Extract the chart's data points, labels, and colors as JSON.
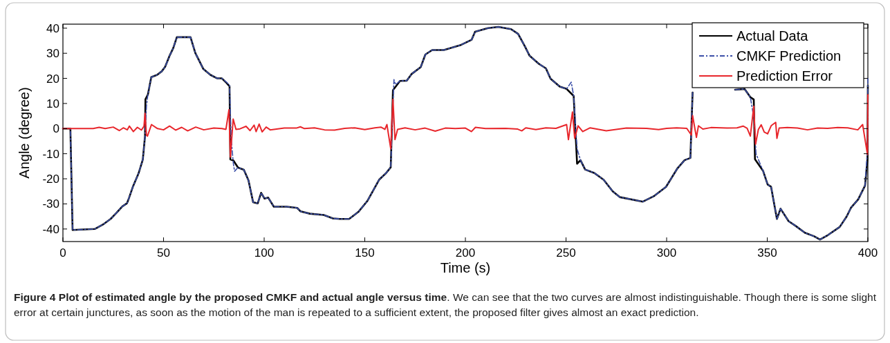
{
  "chart_data": {
    "type": "line",
    "title": "Figure 4 Plot of estimated angle by the proposed CMKF and actual angle versus time",
    "xlabel": "Time (s)",
    "ylabel": "Angle (degree)",
    "annotations": [
      ". We can see that the two curves are almost indistinguishable. Though there is some slight error at certain junctures, as soon as the motion of the man is repeated to a sufficient extent, the proposed filter gives almost an exact prediction."
    ],
    "xlim": [
      0,
      400
    ],
    "xticks": [
      0,
      50,
      100,
      150,
      200,
      250,
      300,
      350,
      400
    ],
    "ylim": [
      -45,
      41.6
    ],
    "yticks": [
      -40,
      -30,
      -20,
      -10,
      0,
      10,
      20,
      30,
      40
    ],
    "grid": false,
    "legend": "top right",
    "series": [
      {
        "name": "Actual Data",
        "color": "#000000",
        "line_style": "solid",
        "x": [
          0,
          3.7,
          4.8,
          15.8,
          20.3,
          23.7,
          26.7,
          29.5,
          31.8,
          32.9,
          34.7,
          37.6,
          39.7,
          40.8,
          41,
          42.2,
          43.9,
          46.8,
          49.1,
          50.8,
          53.1,
          54.8,
          56.6,
          63.4,
          65.8,
          69.8,
          73.3,
          76.7,
          79,
          81.3,
          82.8,
          83.2,
          84.7,
          87,
          89.9,
          92.2,
          94.5,
          96.8,
          98.5,
          100.2,
          102,
          104.8,
          111.2,
          116.4,
          118.1,
          122.7,
          129.6,
          134.2,
          137.6,
          142.2,
          146.8,
          151.4,
          157.1,
          160.6,
          162.9,
          164,
          167.5,
          170.9,
          173.2,
          177.8,
          180.1,
          183.5,
          189.3,
          197.4,
          203.1,
          204.8,
          211.2,
          216.4,
          222.7,
          226.2,
          229.6,
          231.9,
          236.5,
          240,
          242.3,
          246.9,
          250.3,
          253.8,
          255.5,
          257.2,
          259.5,
          264.1,
          268.7,
          273.2,
          276.7,
          288.2,
          293.9,
          299.7,
          305.4,
          308.9,
          311.8,
          312.9,
          325,
          334,
          338.7,
          341.6,
          343.3,
          343.9,
          347.9,
          350.2,
          351.9,
          354.8,
          356.6,
          360.6,
          364,
          368.7,
          373.3,
          376.2,
          380.2,
          386,
          389.4,
          391.7,
          395.2,
          398.6,
          399.8,
          400
        ],
        "values": [
          0,
          0,
          -40.4,
          -40,
          -38,
          -36,
          -33.5,
          -31,
          -29.8,
          -27.5,
          -23.3,
          -17.8,
          -12.3,
          -3,
          11.7,
          13.5,
          20.5,
          21.4,
          22.8,
          24.6,
          29.2,
          32,
          36.4,
          36.4,
          30.1,
          23.7,
          21.4,
          20,
          20,
          18.2,
          16.8,
          -12.3,
          -12.7,
          -15.5,
          -16.4,
          -20.6,
          -29.3,
          -29.8,
          -25.6,
          -27.9,
          -27.5,
          -31.1,
          -31.1,
          -31.6,
          -33,
          -33.9,
          -34.4,
          -35.8,
          -36,
          -36,
          -33.2,
          -28.7,
          -20.4,
          -17.7,
          -15.4,
          15.3,
          19,
          19.1,
          21.7,
          24.5,
          29.5,
          31.3,
          31.3,
          33.2,
          35.4,
          38.6,
          40,
          40.5,
          39.6,
          37.7,
          32.7,
          29,
          25.8,
          24,
          19.9,
          16.7,
          15.8,
          13,
          -14,
          -12.6,
          -16.3,
          -17.7,
          -20.4,
          -25,
          -27.3,
          -29.1,
          -26.8,
          -23.2,
          -15.8,
          -12.6,
          -11.7,
          14.4,
          null,
          15.5,
          15.8,
          12.5,
          11.6,
          -12.2,
          -16.8,
          -22.3,
          -23.2,
          -36,
          -31.9,
          -36.9,
          -38.7,
          -41.5,
          -42.9,
          -44.2,
          -42.4,
          -39.2,
          -35.1,
          -31.4,
          -28.2,
          -22.7,
          -12.2,
          17.1
        ]
      },
      {
        "name": "CMKF Prediction",
        "color": "#3b4fa8",
        "line_style": "dashdot",
        "x": [
          0,
          3.7,
          4.8,
          15.8,
          20.3,
          23.7,
          26.7,
          29.5,
          31.8,
          32.9,
          34.7,
          37.6,
          39.7,
          40.8,
          41.5,
          42.2,
          43.9,
          46.8,
          49.1,
          50.8,
          53.1,
          54.8,
          56.6,
          63.4,
          65.8,
          69.8,
          73.3,
          76.7,
          79,
          81.3,
          82.8,
          83.6,
          84.7,
          85.3,
          87,
          89.9,
          92.2,
          94.5,
          96.8,
          98.5,
          100.2,
          102,
          104.8,
          111.2,
          116.4,
          118.1,
          122.7,
          129.6,
          134.2,
          137.6,
          142.2,
          146.8,
          151.4,
          157.1,
          160.6,
          162.9,
          163.8,
          164.5,
          165.3,
          167.5,
          170.9,
          173.2,
          177.8,
          180.1,
          183.5,
          189.3,
          197.4,
          203.1,
          204.8,
          211.2,
          216.4,
          222.7,
          226.2,
          229.6,
          231.9,
          236.5,
          240,
          242.3,
          246.9,
          250.3,
          252.6,
          253.8,
          255.5,
          257.2,
          259.5,
          264.1,
          268.7,
          273.2,
          276.7,
          288.2,
          293.9,
          299.7,
          305.4,
          308.9,
          311.8,
          312.9,
          325,
          334,
          338.7,
          341.6,
          343.6,
          344.4,
          347.9,
          350.2,
          351.9,
          354.8,
          356.6,
          360.6,
          364,
          368.7,
          373.3,
          376.2,
          380.2,
          386,
          389.4,
          391.7,
          395.2,
          398.6,
          399.8,
          400
        ],
        "values": [
          0,
          0,
          -40.4,
          -40,
          -38,
          -36,
          -33.5,
          -31,
          -29.8,
          -27.5,
          -23.3,
          -17.8,
          -12.3,
          -3,
          9,
          13.5,
          20.5,
          21.4,
          22.8,
          24.6,
          29.2,
          32,
          36.4,
          36.4,
          30.1,
          23.7,
          21.4,
          20,
          20,
          18.5,
          17.2,
          -4,
          -14,
          -17,
          -15.5,
          -16.4,
          -20.6,
          -29.3,
          -29.8,
          -25.6,
          -27.9,
          -27.5,
          -31.1,
          -31.1,
          -31.6,
          -33,
          -33.9,
          -34.4,
          -35.8,
          -36,
          -36,
          -33.2,
          -28.7,
          -20.4,
          -17.7,
          -15.4,
          5,
          19.5,
          17.5,
          19,
          19.1,
          21.7,
          24.5,
          29.5,
          31.3,
          31.3,
          33.2,
          35.4,
          38.6,
          40,
          40.5,
          39.6,
          37.7,
          32.7,
          29,
          25.8,
          24,
          19.9,
          16.7,
          15.8,
          18.5,
          13,
          -8,
          -12.6,
          -16.3,
          -17.7,
          -20.4,
          -25,
          -27.3,
          -29.1,
          -26.8,
          -23.2,
          -15.8,
          -12.6,
          -11.7,
          14.4,
          null,
          15.5,
          15.8,
          12.5,
          3,
          -10,
          -16.8,
          -22.3,
          -23.2,
          -36,
          -31.9,
          -36.9,
          -38.7,
          -41.5,
          -42.9,
          -44.2,
          -42.4,
          -39.2,
          -35.1,
          -31.4,
          -28.2,
          -22.7,
          -8,
          20
        ]
      },
      {
        "name": "Prediction Error",
        "color": "#e8262b",
        "line_style": "solid",
        "x": [
          0,
          4,
          15,
          18,
          21,
          25,
          28,
          30,
          32,
          33,
          35,
          37,
          39,
          40.3,
          40.8,
          41.5,
          42,
          44,
          47,
          50,
          53,
          56,
          59,
          62,
          66,
          70,
          75,
          79,
          81,
          82.5,
          83.2,
          84.6,
          86,
          88,
          91,
          93,
          95,
          96,
          97.5,
          99,
          101,
          103,
          110,
          116,
          118,
          120,
          125,
          130,
          135,
          140,
          145,
          150,
          155,
          158,
          160,
          161,
          162.9,
          164,
          165,
          166.3,
          170,
          175,
          180,
          185,
          190,
          195,
          200,
          203,
          205,
          210,
          220,
          226,
          228,
          230,
          235,
          240,
          245,
          250.3,
          251.2,
          253.2,
          254.3,
          256,
          258.3,
          262,
          270,
          280,
          290,
          296,
          300,
          305,
          310,
          312.3,
          312.9,
          314.8,
          315.8,
          318,
          322,
          330,
          335,
          338,
          340,
          341.6,
          343.3,
          344.2,
          345.6,
          347,
          348.5,
          350.2,
          352,
          354.2,
          354.8,
          355.9,
          360,
          365,
          370,
          375,
          380,
          385,
          390,
          395,
          397.4,
          399.8,
          400
        ],
        "values": [
          0,
          0,
          0,
          0.5,
          0,
          0.6,
          -0.8,
          0.3,
          -0.5,
          1,
          -1.2,
          0.5,
          -0.6,
          1,
          6.1,
          -2.6,
          -3,
          1.6,
          0,
          -0.5,
          1,
          -0.6,
          0.5,
          -0.9,
          0.6,
          -0.5,
          0.2,
          0,
          -0.3,
          7.5,
          -11.3,
          3.8,
          -0.3,
          -0.1,
          0.9,
          -0.8,
          1.4,
          -1.2,
          1.8,
          -1.3,
          0.6,
          -0.5,
          0.2,
          0.2,
          0.7,
          0,
          0.3,
          -0.5,
          -0.6,
          0.1,
          0.3,
          -0.4,
          0.3,
          0.6,
          -0.3,
          1.6,
          -8,
          11.6,
          -4.4,
          -0.3,
          0.3,
          -0.5,
          0.2,
          -1,
          0.2,
          0,
          0.2,
          -1.2,
          0.5,
          0,
          0.1,
          -0.2,
          -0.9,
          0.3,
          -0.4,
          0.3,
          0.1,
          1.6,
          -4.4,
          6.6,
          -3.9,
          1.1,
          -1.2,
          0.3,
          -0.9,
          0.2,
          0.1,
          -0.4,
          0.1,
          0.3,
          0.1,
          -2.6,
          5.2,
          -3.5,
          1.1,
          -0.2,
          0.4,
          0.2,
          0.3,
          1,
          0.1,
          -3,
          8.9,
          -6.2,
          -0.3,
          1.5,
          -1.4,
          -2.1,
          1.2,
          2.5,
          -3.9,
          0.2,
          0.4,
          0.2,
          -0.5,
          0.2,
          0.1,
          0.4,
          0.3,
          -0.5,
          1.6,
          -10.3,
          13.5
        ]
      }
    ]
  }
}
